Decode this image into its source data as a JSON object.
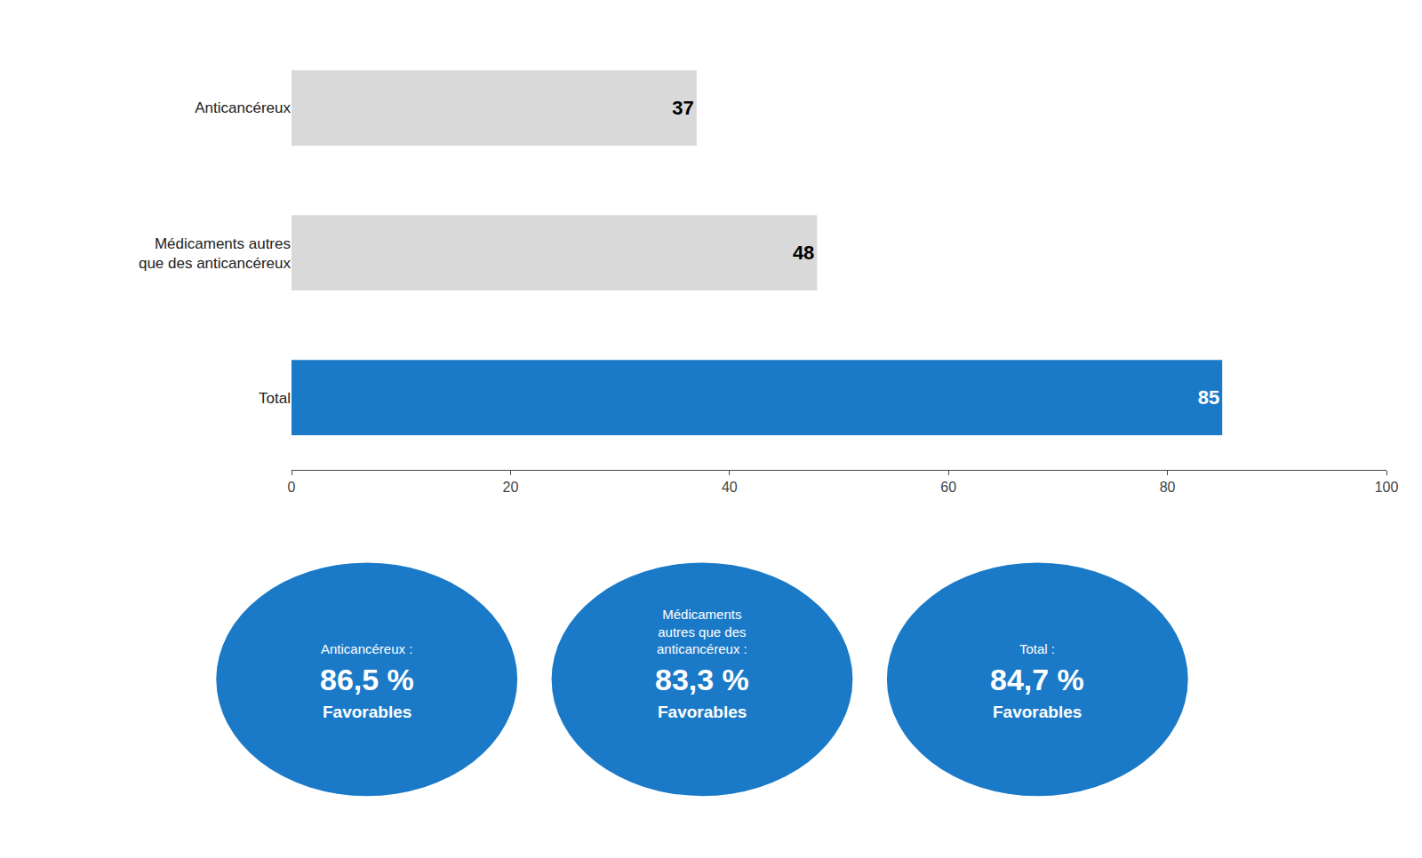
{
  "chart_data": {
    "type": "bar",
    "orientation": "horizontal",
    "categories": [
      "Anticancéreux",
      "Médicaments autres\nque des anticancéreux",
      "Total"
    ],
    "values": [
      37,
      48,
      85
    ],
    "colors": [
      "#d9d9d9",
      "#d9d9d9",
      "#1a7ac7"
    ],
    "data_labels": true,
    "xlim": [
      0,
      100
    ],
    "xticks": [
      0,
      20,
      40,
      60,
      80,
      100
    ],
    "grid": false,
    "annotations": [
      {
        "label": "Anticancéreux :",
        "pct": "86,5 %",
        "sub": "Favorables",
        "color": "#1a7ac7"
      },
      {
        "label": "Médicaments\nautres que des\nanticancéreux :",
        "pct": "83,3 %",
        "sub": "Favorables",
        "color": "#1a7ac7"
      },
      {
        "label": "Total :",
        "pct": "84,7 %",
        "sub": "Favorables",
        "color": "#1a7ac7"
      }
    ]
  }
}
